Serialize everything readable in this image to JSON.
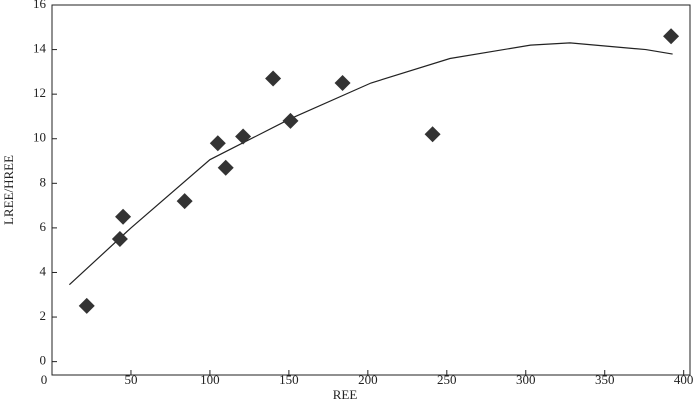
{
  "chart_data": {
    "type": "scatter",
    "xlabel": "REE",
    "ylabel": "LREE/HREE",
    "x": [
      22,
      43,
      45,
      84,
      105,
      110,
      121,
      140,
      151,
      184,
      241,
      392
    ],
    "values": [
      2.5,
      5.5,
      6.5,
      7.2,
      9.8,
      8.7,
      10.1,
      12.7,
      10.8,
      12.5,
      10.2,
      14.6
    ],
    "color": "#333333",
    "curve": {
      "x": [
        11,
        50,
        100,
        151,
        202,
        252,
        303,
        328,
        360,
        376,
        393
      ],
      "values": [
        3.45,
        6.0,
        9.06,
        10.9,
        12.5,
        13.6,
        14.2,
        14.3,
        14.1,
        14.0,
        13.8
      ],
      "color": "#222222"
    },
    "xlim": [
      0,
      404
    ],
    "xticks": [
      0,
      50,
      100,
      150,
      200,
      250,
      300,
      350,
      400
    ],
    "ylim": [
      -0.6,
      16
    ],
    "yticks": [
      0,
      2,
      4,
      6,
      8,
      10,
      12,
      14,
      16
    ]
  }
}
